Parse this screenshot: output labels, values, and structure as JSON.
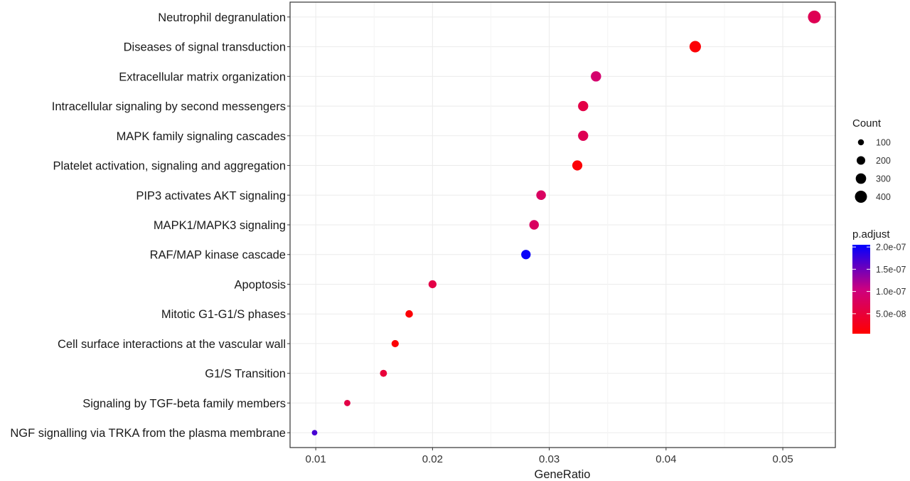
{
  "chart_data": {
    "type": "scatter",
    "title": "",
    "xlabel": "GeneRatio",
    "ylabel": "",
    "xlim": [
      0.0078,
      0.0545
    ],
    "xticks": [
      "0.01",
      "0.02",
      "0.03",
      "0.04",
      "0.05"
    ],
    "grid": true,
    "legend_position": "right",
    "categories": [
      "Neutrophil degranulation",
      "Diseases of signal transduction",
      "Extracellular matrix organization",
      "Intracellular signaling by second messengers",
      "MAPK family signaling cascades",
      "Platelet activation, signaling and aggregation",
      "PIP3 activates AKT signaling",
      "MAPK1/MAPK3 signaling",
      "RAF/MAP kinase cascade",
      "Apoptosis",
      "Mitotic G1-G1/S phases",
      "Cell surface interactions at the vascular wall",
      "G1/S Transition",
      "Signaling by TGF-beta family members",
      "NGF signalling via TRKA from the plasma membrane"
    ],
    "points": [
      {
        "term": "Neutrophil degranulation",
        "gene_ratio": 0.0527,
        "count": 450,
        "p_adjust": 7e-08
      },
      {
        "term": "Diseases of signal transduction",
        "gene_ratio": 0.0425,
        "count": 360,
        "p_adjust": 1e-08
      },
      {
        "term": "Extracellular matrix organization",
        "gene_ratio": 0.034,
        "count": 290,
        "p_adjust": 9e-08
      },
      {
        "term": "Intracellular signaling by second messengers",
        "gene_ratio": 0.0329,
        "count": 285,
        "p_adjust": 6e-08
      },
      {
        "term": "MAPK family signaling cascades",
        "gene_ratio": 0.0329,
        "count": 285,
        "p_adjust": 7e-08
      },
      {
        "term": "Platelet activation, signaling and aggregation",
        "gene_ratio": 0.0324,
        "count": 280,
        "p_adjust": 1e-08
      },
      {
        "term": "PIP3 activates AKT signaling",
        "gene_ratio": 0.0293,
        "count": 255,
        "p_adjust": 8e-08
      },
      {
        "term": "MAPK1/MAPK3 signaling",
        "gene_ratio": 0.0287,
        "count": 250,
        "p_adjust": 8e-08
      },
      {
        "term": "RAF/MAP kinase cascade",
        "gene_ratio": 0.028,
        "count": 245,
        "p_adjust": 2e-07
      },
      {
        "term": "Apoptosis",
        "gene_ratio": 0.02,
        "count": 175,
        "p_adjust": 6e-08
      },
      {
        "term": "Mitotic G1-G1/S phases",
        "gene_ratio": 0.018,
        "count": 155,
        "p_adjust": 1e-08
      },
      {
        "term": "Cell surface interactions at the vascular wall",
        "gene_ratio": 0.0168,
        "count": 145,
        "p_adjust": 1e-08
      },
      {
        "term": "G1/S Transition",
        "gene_ratio": 0.0158,
        "count": 135,
        "p_adjust": 5e-08
      },
      {
        "term": "Signaling by TGF-beta family members",
        "gene_ratio": 0.0127,
        "count": 110,
        "p_adjust": 6e-08
      },
      {
        "term": "NGF signalling via TRKA from the plasma membrane",
        "gene_ratio": 0.0099,
        "count": 85,
        "p_adjust": 1.7e-07
      }
    ],
    "size_legend": {
      "title": "Count",
      "breaks": [
        100,
        200,
        300,
        400
      ],
      "labels": [
        "100",
        "200",
        "300",
        "400"
      ]
    },
    "color_legend": {
      "title": "p.adjust",
      "range": [
        5e-09,
        2.05e-07
      ],
      "low_color": "#ff0000",
      "high_color": "#0000ff",
      "ticks": [
        2e-07,
        1.5e-07,
        1e-07,
        5e-08
      ],
      "tick_labels": [
        "2.0e-07",
        "1.5e-07",
        "1.0e-07",
        "5.0e-08"
      ]
    },
    "colors": {
      "panel_border": "#333333",
      "grid": "#ebebeb",
      "background": "#ffffff"
    }
  }
}
